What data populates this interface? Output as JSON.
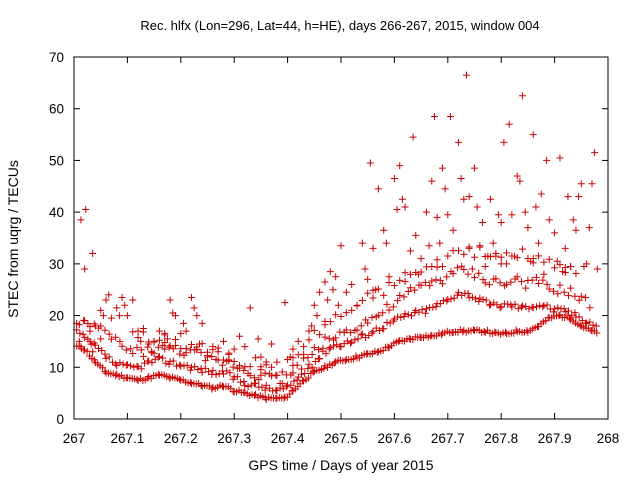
{
  "chart_data": {
    "type": "scatter",
    "title": "Rec. hlfx (Lon=296, Lat=44, h=HE), days 266-267, 2015, window 004",
    "xlabel": "GPS time / Days of year 2015",
    "ylabel": "STEC from uqrg / TECUs",
    "xlim": [
      267,
      268
    ],
    "ylim": [
      0,
      70
    ],
    "xticks": [
      "267",
      "267.1",
      "267.2",
      "267.3",
      "267.4",
      "267.5",
      "267.6",
      "267.7",
      "267.8",
      "267.9",
      "268"
    ],
    "yticks": [
      "0",
      "10",
      "20",
      "30",
      "40",
      "50",
      "60",
      "70"
    ],
    "grid": false,
    "legend": "none",
    "marker": "plus",
    "color": "#cc0000",
    "series": [
      {
        "points": [
          [
            267.013,
            38.5
          ],
          [
            267.022,
            40.5
          ],
          [
            267.02,
            29
          ],
          [
            267.035,
            32
          ],
          [
            267.005,
            18.5
          ],
          [
            267.01,
            15
          ],
          [
            267.013,
            14
          ],
          [
            267.02,
            19
          ],
          [
            267.03,
            17
          ],
          [
            267.03,
            15
          ],
          [
            267.035,
            13
          ],
          [
            267.04,
            18
          ],
          [
            267.05,
            15.5
          ],
          [
            267.05,
            21
          ],
          [
            267.055,
            20
          ],
          [
            267.06,
            23
          ],
          [
            267.065,
            24
          ],
          [
            267.07,
            19.5
          ],
          [
            267.08,
            21.5
          ],
          [
            267.085,
            20
          ],
          [
            267.09,
            23.5
          ],
          [
            267.095,
            22
          ],
          [
            267.1,
            20
          ],
          [
            267.11,
            23
          ],
          [
            267.12,
            17
          ],
          [
            267.125,
            15
          ],
          [
            267.13,
            17.5
          ],
          [
            267.14,
            14.5
          ],
          [
            267.145,
            13
          ],
          [
            267.15,
            15
          ],
          [
            267.16,
            17
          ],
          [
            267.17,
            13.5
          ],
          [
            267.175,
            15.5
          ],
          [
            267.18,
            23
          ],
          [
            267.185,
            20.5
          ],
          [
            267.19,
            20
          ],
          [
            267.2,
            16.5
          ],
          [
            267.205,
            18.5
          ],
          [
            267.21,
            17
          ],
          [
            267.22,
            23.5
          ],
          [
            267.225,
            21.5
          ],
          [
            267.23,
            20
          ],
          [
            267.235,
            14.5
          ],
          [
            267.24,
            18.5
          ],
          [
            267.25,
            12
          ],
          [
            267.26,
            14
          ],
          [
            267.27,
            13
          ],
          [
            267.28,
            15
          ],
          [
            267.29,
            12.5
          ],
          [
            267.3,
            13.5
          ],
          [
            267.31,
            16
          ],
          [
            267.32,
            14
          ],
          [
            267.33,
            21.5
          ],
          [
            267.345,
            15.5
          ],
          [
            267.35,
            12
          ],
          [
            267.36,
            10.5
          ],
          [
            267.37,
            14.5
          ],
          [
            267.38,
            11
          ],
          [
            267.395,
            22.5
          ],
          [
            267.405,
            12
          ],
          [
            267.41,
            13.5
          ],
          [
            267.42,
            15
          ],
          [
            267.43,
            14
          ],
          [
            267.44,
            17
          ],
          [
            267.445,
            18
          ],
          [
            267.45,
            22
          ],
          [
            267.455,
            20
          ],
          [
            267.46,
            24.5
          ],
          [
            267.47,
            26.5
          ],
          [
            267.475,
            23
          ],
          [
            267.48,
            28.5
          ],
          [
            267.485,
            25
          ],
          [
            267.49,
            27.5
          ],
          [
            267.495,
            22
          ],
          [
            267.5,
            33.5
          ],
          [
            267.51,
            24.5
          ],
          [
            267.52,
            26
          ],
          [
            267.53,
            22
          ],
          [
            267.54,
            34
          ],
          [
            267.545,
            29
          ],
          [
            267.55,
            27
          ],
          [
            267.555,
            49.5
          ],
          [
            267.56,
            33
          ],
          [
            267.565,
            25
          ],
          [
            267.57,
            44.5
          ],
          [
            267.58,
            36.5
          ],
          [
            267.585,
            34
          ],
          [
            267.59,
            27.5
          ],
          [
            267.6,
            46.5
          ],
          [
            267.605,
            40.5
          ],
          [
            267.61,
            49
          ],
          [
            267.615,
            42.5
          ],
          [
            267.62,
            41
          ],
          [
            267.63,
            32.5
          ],
          [
            267.635,
            54.5
          ],
          [
            267.64,
            35.5
          ],
          [
            267.645,
            28
          ],
          [
            267.65,
            31
          ],
          [
            267.66,
            40
          ],
          [
            267.665,
            33.5
          ],
          [
            267.67,
            46
          ],
          [
            267.675,
            58.5
          ],
          [
            267.68,
            39
          ],
          [
            267.685,
            34
          ],
          [
            267.69,
            48.5
          ],
          [
            267.695,
            44.5
          ],
          [
            267.7,
            39.5
          ],
          [
            267.705,
            58.5
          ],
          [
            267.71,
            36.5
          ],
          [
            267.72,
            53.5
          ],
          [
            267.725,
            46.5
          ],
          [
            267.73,
            42.5
          ],
          [
            267.735,
            66.5
          ],
          [
            267.74,
            43
          ],
          [
            267.75,
            48.5
          ],
          [
            267.755,
            41
          ],
          [
            267.76,
            33.5
          ],
          [
            267.765,
            38
          ],
          [
            267.77,
            29.5
          ],
          [
            267.775,
            31.5
          ],
          [
            267.78,
            42.5
          ],
          [
            267.785,
            34
          ],
          [
            267.79,
            32
          ],
          [
            267.795,
            39.5
          ],
          [
            267.8,
            38
          ],
          [
            267.805,
            53.5
          ],
          [
            267.81,
            30
          ],
          [
            267.815,
            57
          ],
          [
            267.82,
            39.5
          ],
          [
            267.825,
            31.5
          ],
          [
            267.83,
            47
          ],
          [
            267.835,
            46
          ],
          [
            267.84,
            62.5
          ],
          [
            267.845,
            40
          ],
          [
            267.85,
            37
          ],
          [
            267.855,
            30.5
          ],
          [
            267.86,
            55
          ],
          [
            267.865,
            41
          ],
          [
            267.87,
            34
          ],
          [
            267.875,
            43.5
          ],
          [
            267.88,
            28
          ],
          [
            267.885,
            50
          ],
          [
            267.89,
            38.5
          ],
          [
            267.9,
            36
          ],
          [
            267.905,
            30.5
          ],
          [
            267.91,
            50.5
          ],
          [
            267.915,
            28.5
          ],
          [
            267.92,
            33
          ],
          [
            267.925,
            43
          ],
          [
            267.93,
            29.5
          ],
          [
            267.935,
            38.5
          ],
          [
            267.94,
            36.5
          ],
          [
            267.945,
            43
          ],
          [
            267.95,
            45.5
          ],
          [
            267.955,
            29.5
          ],
          [
            267.96,
            30
          ],
          [
            267.965,
            37
          ],
          [
            267.97,
            45.5
          ],
          [
            267.975,
            51.5
          ],
          [
            267.98,
            29
          ]
        ]
      }
    ],
    "lower_envelope": {
      "x": [
        267.005,
        267.02,
        267.04,
        267.06,
        267.08,
        267.1,
        267.12,
        267.14,
        267.16,
        267.18,
        267.2,
        267.22,
        267.24,
        267.26,
        267.28,
        267.3,
        267.32,
        267.34,
        267.36,
        267.38,
        267.395,
        267.41,
        267.43,
        267.45,
        267.47,
        267.49,
        267.51,
        267.53,
        267.55,
        267.57,
        267.59,
        267.61,
        267.63,
        267.65,
        267.67,
        267.69,
        267.71,
        267.73,
        267.75,
        267.77,
        267.79,
        267.81,
        267.83,
        267.85,
        267.87,
        267.89,
        267.91,
        267.93,
        267.95,
        267.97,
        267.98
      ],
      "y": [
        14,
        13.5,
        11,
        9,
        8.5,
        8,
        7.5,
        8,
        8.5,
        8,
        7.5,
        7,
        6.5,
        6,
        6.5,
        5.5,
        5,
        4.5,
        4,
        4,
        4,
        5.5,
        7.5,
        9,
        10,
        11,
        11.5,
        12,
        12.5,
        13,
        14,
        15,
        15.5,
        16,
        16,
        16.5,
        17,
        17,
        17,
        17,
        16.5,
        16.5,
        17,
        17,
        18,
        19.5,
        20,
        19.5,
        18,
        17,
        16.5
      ]
    },
    "middle_band": {
      "x": [
        267.005,
        267.02,
        267.04,
        267.06,
        267.08,
        267.1,
        267.12,
        267.14,
        267.16,
        267.18,
        267.2,
        267.22,
        267.24,
        267.26,
        267.28,
        267.3,
        267.32,
        267.34,
        267.36,
        267.38,
        267.4,
        267.42,
        267.44,
        267.46,
        267.48,
        267.5,
        267.52,
        267.54,
        267.56,
        267.58,
        267.6,
        267.62,
        267.64,
        267.66,
        267.68,
        267.7,
        267.72,
        267.74,
        267.76,
        267.78,
        267.8,
        267.82,
        267.84,
        267.86,
        267.88,
        267.9,
        267.92,
        267.94,
        267.96,
        267.98
      ],
      "y": [
        17,
        15.5,
        14,
        12,
        10.5,
        10,
        10,
        11,
        11.5,
        11,
        10.5,
        10,
        9.5,
        9,
        9,
        8,
        7,
        6.5,
        6,
        5.5,
        6,
        8,
        10,
        12,
        14,
        14.5,
        15,
        16,
        17,
        18,
        19,
        20,
        20.5,
        21,
        22,
        23,
        24.5,
        24,
        23,
        22,
        22,
        22,
        21.5,
        22,
        22,
        21,
        21,
        20,
        19,
        18
      ]
    },
    "upper_band": {
      "x": [
        267.01,
        267.03,
        267.05,
        267.07,
        267.09,
        267.11,
        267.13,
        267.15,
        267.17,
        267.19,
        267.21,
        267.23,
        267.25,
        267.27,
        267.29,
        267.31,
        267.33,
        267.35,
        267.37,
        267.39,
        267.41,
        267.43,
        267.45,
        267.47,
        267.49,
        267.51,
        267.53,
        267.55,
        267.57,
        267.59,
        267.61,
        267.63,
        267.65,
        267.67,
        267.69,
        267.71,
        267.73,
        267.75,
        267.77,
        267.79,
        267.81,
        267.83,
        267.85,
        267.87,
        267.89,
        267.91,
        267.93,
        267.95,
        267.97
      ],
      "y": [
        19,
        18,
        17,
        16,
        14,
        13,
        13,
        13.5,
        14,
        13.5,
        13,
        12.5,
        11.5,
        11,
        11,
        10,
        9,
        8.5,
        8,
        7.5,
        9,
        11,
        13,
        15,
        16,
        17,
        18,
        19,
        20,
        21.5,
        23,
        24.5,
        25.5,
        26.5,
        27,
        28,
        29,
        28,
        27,
        26.5,
        26,
        27,
        26,
        26.5,
        25,
        25,
        24.5,
        23,
        22
      ]
    },
    "upper_band2": {
      "x": [
        267.11,
        267.14,
        267.17,
        267.2,
        267.23,
        267.26,
        267.29,
        267.32,
        267.35,
        267.38,
        267.41,
        267.44,
        267.47,
        267.5,
        267.53,
        267.56,
        267.59,
        267.62,
        267.65,
        267.68,
        267.71,
        267.74,
        267.77,
        267.8,
        267.83,
        267.86,
        267.89,
        267.92,
        267.95
      ],
      "y": [
        17.5,
        15,
        15.5,
        14.5,
        14,
        13,
        12,
        11,
        10.5,
        9.5,
        11,
        15,
        18.5,
        20,
        22,
        24,
        25.5,
        27.5,
        28.5,
        30,
        32,
        33,
        31.5,
        31,
        32,
        31,
        30,
        29.5,
        27
      ]
    }
  }
}
